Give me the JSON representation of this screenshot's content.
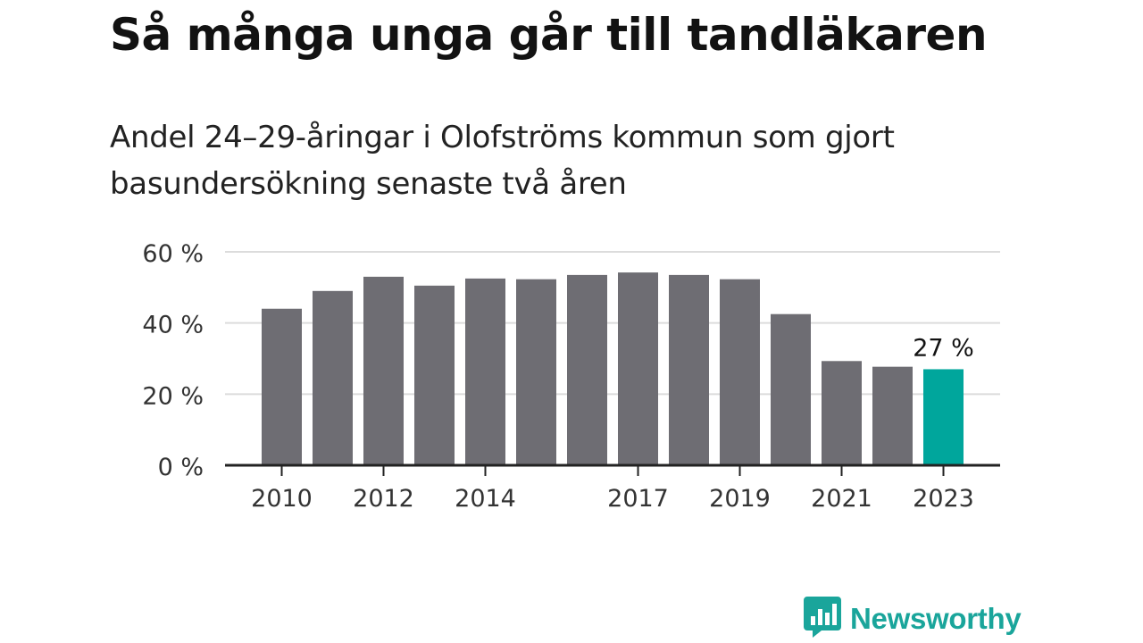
{
  "header": {
    "title": "Så många unga går till tandläkaren",
    "subtitle": "Andel 24–29-åringar i Olofströms kommun som gjort basundersökning senaste två åren"
  },
  "brand": {
    "name": "Newsworthy",
    "icon": "bar-chart-speech-bubble-icon",
    "color": "#1aa59b"
  },
  "chart_data": {
    "type": "bar",
    "categories": [
      "2010",
      "2011",
      "2012",
      "2013",
      "2014",
      "2015",
      "2016",
      "2017",
      "2018",
      "2019",
      "2020",
      "2021",
      "2022",
      "2023"
    ],
    "values": [
      44,
      49,
      53,
      50.5,
      52.5,
      52.3,
      53.5,
      54.2,
      53.5,
      52.3,
      42.5,
      29.3,
      27.7,
      27
    ],
    "xtick_labels": [
      "2010",
      "",
      "2012",
      "",
      "2014",
      "",
      "",
      "2017",
      "",
      "2019",
      "",
      "2021",
      "",
      "2023"
    ],
    "yticks": [
      0,
      20,
      40,
      60
    ],
    "ytick_labels": [
      "0 %",
      "20 %",
      "40 %",
      "60 %"
    ],
    "ylim": [
      0,
      60
    ],
    "grid": true,
    "bar_color": "#6e6d73",
    "highlight_color": "#00a69c",
    "highlight_index": 13,
    "data_labels": [
      {
        "index": 13,
        "text": "27 %"
      }
    ]
  }
}
